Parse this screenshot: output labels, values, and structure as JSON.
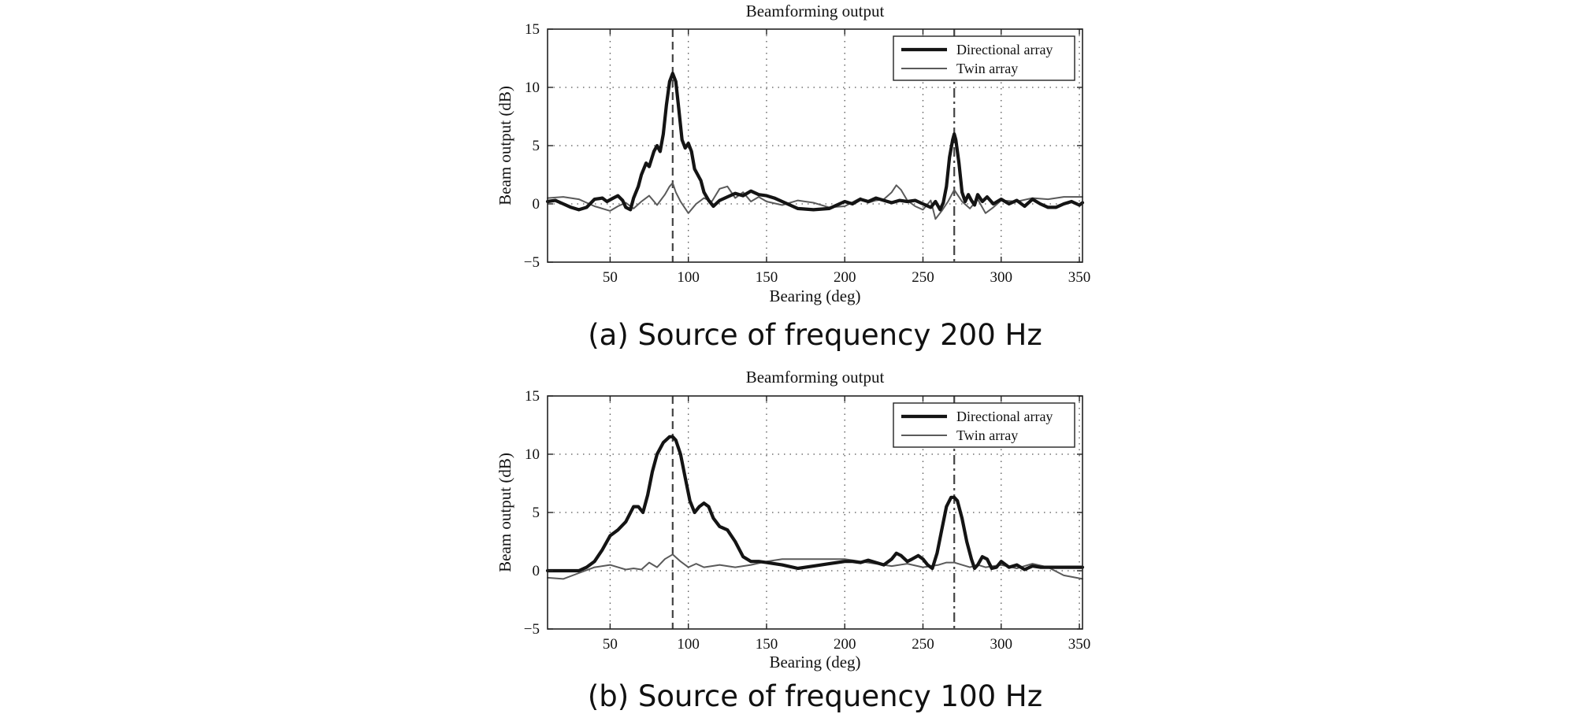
{
  "colors": {
    "background": "#ffffff",
    "axis": "#222222",
    "grid": "#555555",
    "directional": "#141414",
    "twin": "#5a5a5a",
    "marker": "#444444"
  },
  "chart_data": [
    {
      "type": "line",
      "panel": "a",
      "title": "Beamforming output",
      "caption": "(a) Source of frequency 200 Hz",
      "xlabel": "Bearing (deg)",
      "ylabel": "Beam output (dB)",
      "xlim": [
        10,
        352
      ],
      "ylim": [
        -5,
        15
      ],
      "xticks": [
        50,
        100,
        150,
        200,
        250,
        300,
        350
      ],
      "yticks": [
        -5,
        0,
        5,
        10,
        15
      ],
      "xtick_labels": [
        "50",
        "100",
        "150",
        "200",
        "250",
        "300",
        "350"
      ],
      "ytick_labels": [
        "−5",
        "0",
        "5",
        "10",
        "15"
      ],
      "grid": true,
      "legend_position": "top-right",
      "markers": [
        {
          "x": 90,
          "style": "dashed"
        },
        {
          "x": 270,
          "style": "dash-dot"
        }
      ],
      "series": [
        {
          "name": "Directional array",
          "style": "thick",
          "x": [
            10,
            15,
            20,
            25,
            30,
            35,
            40,
            45,
            48,
            52,
            55,
            58,
            60,
            63,
            65,
            68,
            70,
            73,
            75,
            78,
            80,
            82,
            84,
            86,
            88,
            90,
            92,
            94,
            96,
            98,
            100,
            102,
            104,
            106,
            108,
            110,
            113,
            116,
            120,
            125,
            130,
            135,
            140,
            145,
            150,
            155,
            160,
            170,
            180,
            190,
            200,
            205,
            210,
            215,
            220,
            225,
            230,
            235,
            240,
            245,
            250,
            255,
            258,
            261,
            263,
            265,
            267,
            269,
            270,
            271,
            273,
            275,
            277,
            279,
            281,
            283,
            285,
            288,
            291,
            295,
            300,
            305,
            310,
            315,
            320,
            325,
            330,
            335,
            340,
            345,
            350,
            352
          ],
          "y": [
            0.2,
            0.3,
            0,
            -0.3,
            -0.5,
            -0.3,
            0.4,
            0.5,
            0.2,
            0.5,
            0.7,
            0.3,
            -0.3,
            -0.5,
            0.5,
            1.5,
            2.5,
            3.5,
            3.2,
            4.5,
            5,
            4.5,
            6,
            8.5,
            10.5,
            11.2,
            10.5,
            8,
            5.5,
            4.8,
            5.2,
            4.5,
            3,
            2.5,
            2,
            1,
            0.3,
            -0.2,
            0.3,
            0.6,
            0.9,
            0.7,
            1.1,
            0.8,
            0.7,
            0.5,
            0.2,
            -0.4,
            -0.5,
            -0.4,
            0.2,
            0,
            0.4,
            0.2,
            0.5,
            0.3,
            0.1,
            0.3,
            0.2,
            0.3,
            0,
            -0.3,
            0.2,
            -0.5,
            0.1,
            1.5,
            4,
            5.5,
            6,
            5.5,
            3.5,
            1,
            0.2,
            0.8,
            0.3,
            -0.1,
            0.8,
            0.2,
            0.6,
            0,
            0.4,
            0,
            0.3,
            -0.2,
            0.4,
            0,
            -0.3,
            -0.3,
            0,
            0.2,
            -0.1,
            0.1
          ]
        },
        {
          "name": "Twin array",
          "style": "thin",
          "x": [
            10,
            20,
            30,
            40,
            45,
            50,
            55,
            60,
            65,
            70,
            75,
            80,
            85,
            88,
            90,
            92,
            95,
            100,
            105,
            110,
            115,
            120,
            125,
            130,
            135,
            140,
            145,
            150,
            160,
            170,
            180,
            190,
            200,
            210,
            215,
            220,
            225,
            230,
            233,
            236,
            240,
            245,
            250,
            255,
            258,
            262,
            266,
            270,
            272,
            275,
            280,
            285,
            290,
            295,
            300,
            310,
            320,
            330,
            340,
            352
          ],
          "y": [
            0.5,
            0.6,
            0.4,
            -0.2,
            -0.4,
            -0.6,
            -0.2,
            0.1,
            -0.4,
            0.2,
            0.7,
            -0.1,
            0.8,
            1.5,
            1.8,
            1,
            0.2,
            -0.8,
            0,
            0.5,
            0.2,
            1.3,
            1.5,
            0.5,
            1,
            0.2,
            0.6,
            0.2,
            -0.1,
            0.3,
            0.1,
            -0.3,
            -0.2,
            0.5,
            0.1,
            0.3,
            0.4,
            1,
            1.6,
            1.2,
            0.3,
            -0.2,
            -0.5,
            0.3,
            -1.3,
            -0.6,
            0.2,
            1.2,
            0.8,
            0.2,
            -0.4,
            0.4,
            -0.8,
            -0.3,
            0.3,
            0.2,
            0.5,
            0.4,
            0.6,
            0.6
          ]
        }
      ]
    },
    {
      "type": "line",
      "panel": "b",
      "title": "Beamforming output",
      "caption": "(b) Source of frequency 100 Hz",
      "xlabel": "Bearing (deg)",
      "ylabel": "Beam output (dB)",
      "xlim": [
        10,
        352
      ],
      "ylim": [
        -5,
        15
      ],
      "xticks": [
        50,
        100,
        150,
        200,
        250,
        300,
        350
      ],
      "yticks": [
        -5,
        0,
        5,
        10,
        15
      ],
      "xtick_labels": [
        "50",
        "100",
        "150",
        "200",
        "250",
        "300",
        "350"
      ],
      "ytick_labels": [
        "−5",
        "0",
        "5",
        "10",
        "15"
      ],
      "grid": true,
      "legend_position": "top-right",
      "markers": [
        {
          "x": 90,
          "style": "dashed"
        },
        {
          "x": 270,
          "style": "dash-dot"
        }
      ],
      "series": [
        {
          "name": "Directional array",
          "style": "thick",
          "x": [
            10,
            20,
            30,
            35,
            40,
            45,
            50,
            55,
            60,
            65,
            68,
            71,
            74,
            77,
            80,
            84,
            88,
            90,
            92,
            95,
            98,
            101,
            104,
            107,
            110,
            113,
            116,
            120,
            125,
            130,
            135,
            140,
            145,
            150,
            160,
            170,
            180,
            190,
            200,
            205,
            210,
            215,
            220,
            225,
            230,
            233,
            236,
            240,
            243,
            247,
            250,
            253,
            256,
            259,
            262,
            265,
            268,
            270,
            272,
            275,
            278,
            281,
            283,
            285,
            288,
            291,
            294,
            297,
            300,
            305,
            310,
            315,
            320,
            325,
            330,
            340,
            352
          ],
          "y": [
            0,
            0,
            0,
            0.3,
            0.8,
            1.8,
            3,
            3.5,
            4.2,
            5.5,
            5.5,
            5,
            6.5,
            8.5,
            10,
            11,
            11.5,
            11.5,
            11.2,
            10,
            8,
            6,
            5,
            5.5,
            5.8,
            5.5,
            4.5,
            3.8,
            3.5,
            2.5,
            1.2,
            0.8,
            0.8,
            0.7,
            0.5,
            0.2,
            0.4,
            0.6,
            0.8,
            0.8,
            0.7,
            0.9,
            0.7,
            0.5,
            1,
            1.5,
            1.3,
            0.8,
            1,
            1.3,
            1,
            0.5,
            0.2,
            1.5,
            3.5,
            5.5,
            6.3,
            6.3,
            6,
            4.5,
            2.5,
            1,
            0.2,
            0.5,
            1.2,
            1,
            0.2,
            0.3,
            0.8,
            0.3,
            0.5,
            0.1,
            0.4,
            0.3,
            0.3,
            0.3,
            0.3
          ]
        },
        {
          "name": "Twin array",
          "style": "thin",
          "x": [
            10,
            20,
            30,
            40,
            50,
            60,
            65,
            70,
            75,
            80,
            85,
            90,
            95,
            100,
            105,
            110,
            115,
            120,
            130,
            140,
            150,
            160,
            170,
            180,
            190,
            200,
            210,
            220,
            230,
            240,
            250,
            260,
            265,
            270,
            275,
            280,
            285,
            290,
            300,
            310,
            320,
            330,
            340,
            352
          ],
          "y": [
            -0.6,
            -0.7,
            -0.2,
            0.3,
            0.5,
            0.1,
            0.2,
            0.1,
            0.7,
            0.3,
            1,
            1.4,
            0.8,
            0.3,
            0.6,
            0.3,
            0.4,
            0.5,
            0.3,
            0.5,
            0.8,
            1,
            1,
            1,
            1,
            1,
            0.8,
            0.6,
            0.4,
            0.6,
            0.3,
            0.5,
            0.7,
            0.7,
            0.5,
            0.3,
            0.5,
            0.3,
            0.5,
            0.2,
            0.6,
            0.3,
            -0.4,
            -0.7
          ]
        }
      ]
    }
  ]
}
